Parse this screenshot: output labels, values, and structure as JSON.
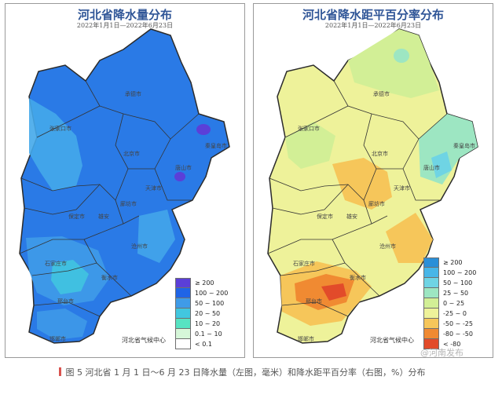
{
  "left_map": {
    "title": "河北省降水量分布",
    "date_range": "2022年1月1日—2022年6月23日",
    "credit": "河北省气候中心",
    "legend": [
      {
        "label": "≥ 200",
        "color": "#5b3fd8"
      },
      {
        "label": "100 ~ 200",
        "color": "#1f64e6"
      },
      {
        "label": "50 ~ 100",
        "color": "#3f9be8"
      },
      {
        "label": "20 ~ 50",
        "color": "#41c7df"
      },
      {
        "label": "10 ~ 20",
        "color": "#57e3c2"
      },
      {
        "label": "0.1 ~ 10",
        "color": "#d6f7d9"
      },
      {
        "label": "< 0.1",
        "color": "#ffffff"
      }
    ],
    "cities": [
      "承德市",
      "张家口市",
      "秦皇岛市",
      "北京市",
      "唐山市",
      "天津市",
      "廊坊市",
      "保定市",
      "雄安",
      "沧州市",
      "石家庄市",
      "衡水市",
      "邢台市",
      "邯郸市"
    ]
  },
  "right_map": {
    "title": "河北省降水距平百分率分布",
    "date_range": "2022年1月1日—2022年6月23日",
    "credit": "河北省气候中心",
    "legend": [
      {
        "label": "≥ 200",
        "color": "#2a8fd8"
      },
      {
        "label": "100 ~ 200",
        "color": "#48b6e8"
      },
      {
        "label": "50 ~ 100",
        "color": "#6fd4e4"
      },
      {
        "label": "25 ~ 50",
        "color": "#9de6c2"
      },
      {
        "label": "0 ~ 25",
        "color": "#d2ef96"
      },
      {
        "label": "-25 ~ 0",
        "color": "#eef29a"
      },
      {
        "label": "-50 ~ -25",
        "color": "#f6c65a"
      },
      {
        "label": "-80 ~ -50",
        "color": "#f08a32"
      },
      {
        "label": "< -80",
        "color": "#e24b2a"
      }
    ],
    "cities": [
      "承德市",
      "张家口市",
      "秦皇岛市",
      "北京市",
      "唐山市",
      "天津市",
      "廊坊市",
      "保定市",
      "雄安",
      "沧州市",
      "石家庄市",
      "衡水市",
      "邢台市",
      "邯郸市"
    ]
  },
  "caption": "图 5 河北省 1 月 1 日～6 月 23 日降水量（左图，毫米）和降水距平百分率（右图，%）分布",
  "watermark": "@河南发布"
}
